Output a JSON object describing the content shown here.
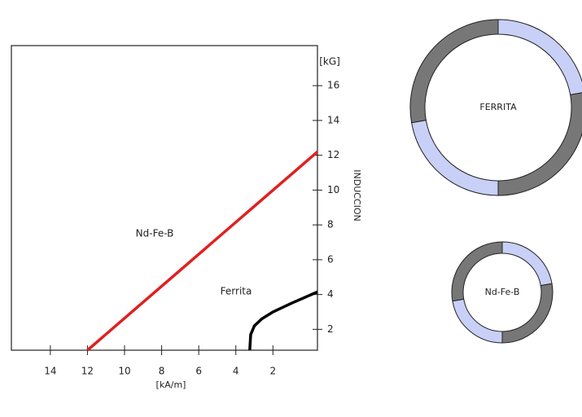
{
  "chart_data": {
    "type": "line",
    "x_label": "[kA/m]",
    "y_unit": "[kG]",
    "y_label": "INDUCCION",
    "xlim": [
      16.1,
      -0.4
    ],
    "ylim": [
      0.8,
      18.3
    ],
    "xticks": [
      14,
      12,
      10,
      8,
      6,
      4,
      2
    ],
    "yticks": [
      2,
      4,
      6,
      8,
      10,
      12,
      14,
      16
    ],
    "series": [
      {
        "name": "Nd-Fe-B",
        "color": "#e02020",
        "x": [
          12,
          -0.4
        ],
        "values": [
          0.8,
          12.2
        ]
      },
      {
        "name": "Ferrita",
        "color": "#000000",
        "x": [
          3.25,
          3.2,
          3.0,
          2.6,
          2.0,
          1.0,
          -0.4
        ],
        "values": [
          0.8,
          1.7,
          2.2,
          2.6,
          3.0,
          3.5,
          4.15
        ]
      }
    ],
    "rings": [
      "FERRITA",
      "Nd-Fe-B"
    ]
  }
}
